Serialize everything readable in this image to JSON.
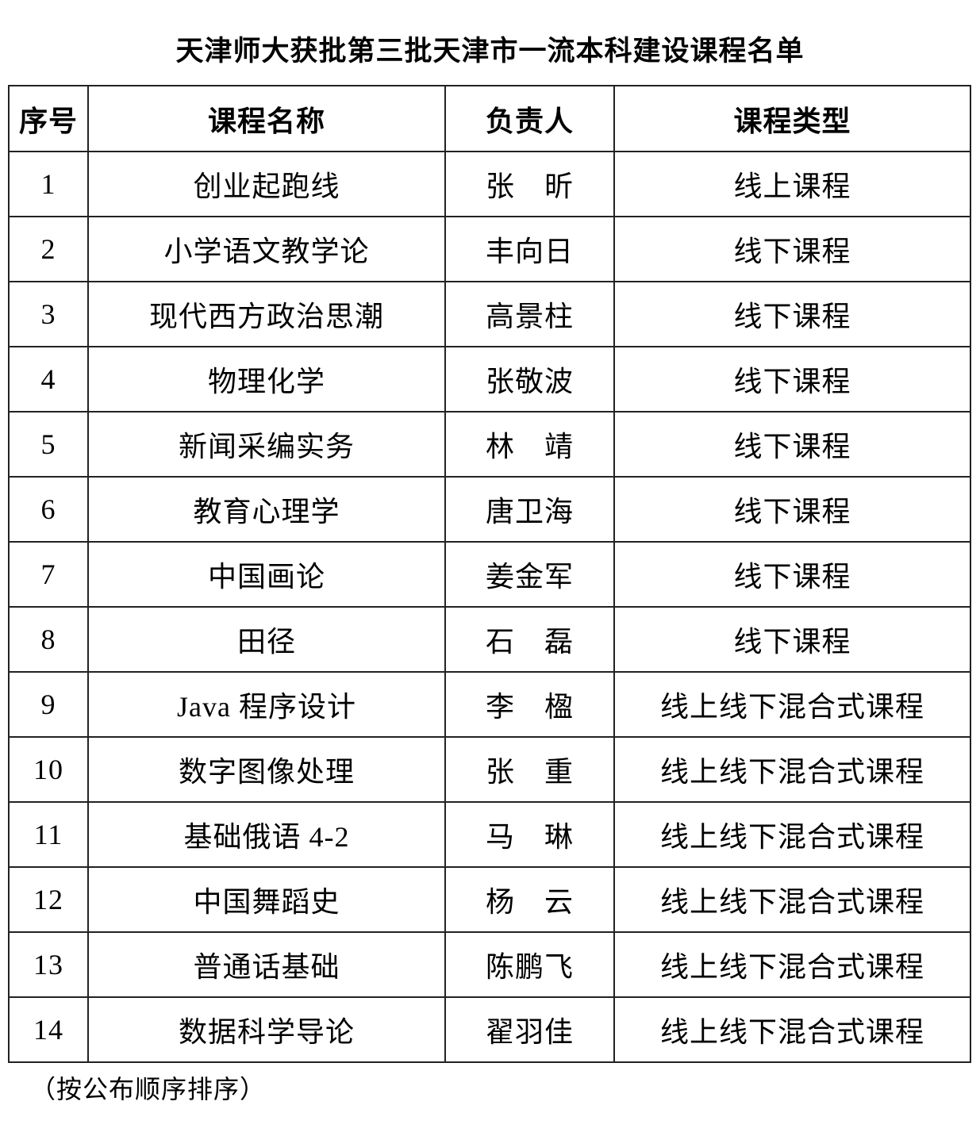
{
  "title": "天津师大获批第三批天津市一流本科建设课程名单",
  "table": {
    "headers": [
      "序号",
      "课程名称",
      "负责人",
      "课程类型"
    ],
    "rows": [
      {
        "no": "1",
        "course": "创业起跑线",
        "leader": "张　昕",
        "type": "线上课程"
      },
      {
        "no": "2",
        "course": "小学语文教学论",
        "leader": "丰向日",
        "type": "线下课程"
      },
      {
        "no": "3",
        "course": "现代西方政治思潮",
        "leader": "高景柱",
        "type": "线下课程"
      },
      {
        "no": "4",
        "course": "物理化学",
        "leader": "张敬波",
        "type": "线下课程"
      },
      {
        "no": "5",
        "course": "新闻采编实务",
        "leader": "林　靖",
        "type": "线下课程"
      },
      {
        "no": "6",
        "course": "教育心理学",
        "leader": "唐卫海",
        "type": "线下课程"
      },
      {
        "no": "7",
        "course": "中国画论",
        "leader": "姜金军",
        "type": "线下课程"
      },
      {
        "no": "8",
        "course": "田径",
        "leader": "石　磊",
        "type": "线下课程"
      },
      {
        "no": "9",
        "course": "Java 程序设计",
        "leader": "李　楹",
        "type": "线上线下混合式课程"
      },
      {
        "no": "10",
        "course": "数字图像处理",
        "leader": "张　重",
        "type": "线上线下混合式课程"
      },
      {
        "no": "11",
        "course": "基础俄语 4-2",
        "leader": "马　琳",
        "type": "线上线下混合式课程"
      },
      {
        "no": "12",
        "course": "中国舞蹈史",
        "leader": "杨　云",
        "type": "线上线下混合式课程"
      },
      {
        "no": "13",
        "course": "普通话基础",
        "leader": "陈鹏飞",
        "type": "线上线下混合式课程"
      },
      {
        "no": "14",
        "course": "数据科学导论",
        "leader": "翟羽佳",
        "type": "线上线下混合式课程"
      }
    ]
  },
  "footnote": "（按公布顺序排序）"
}
